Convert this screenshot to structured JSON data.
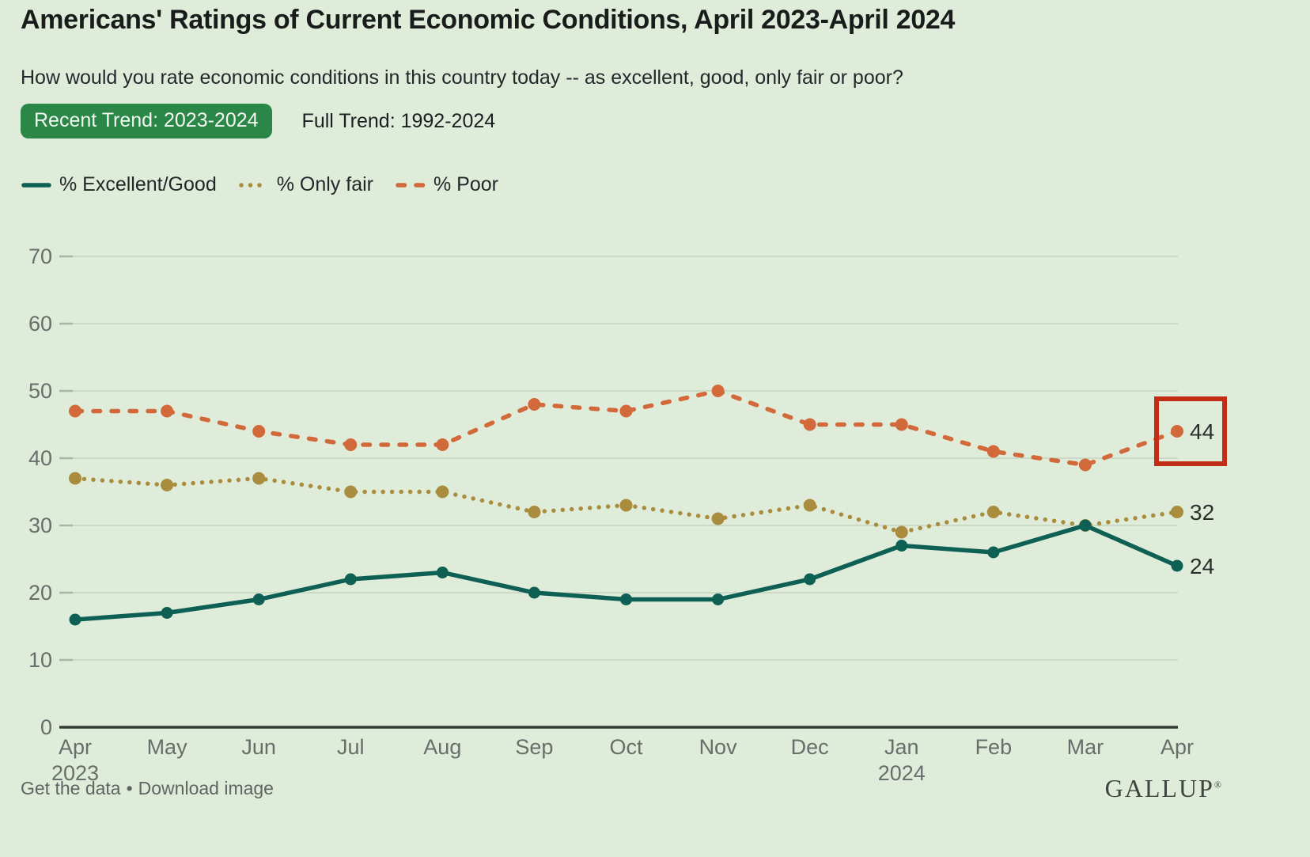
{
  "header": {
    "title": "Americans' Ratings of Current Economic Conditions, April 2023-April 2024",
    "subtitle": "How would you rate economic conditions in this country today -- as excellent, good, only fair or poor?"
  },
  "tabs": {
    "recent": {
      "label": "Recent Trend: 2023-2024",
      "active": true
    },
    "full": {
      "label": "Full Trend: 1992-2024",
      "active": false
    }
  },
  "colors": {
    "background": "#dfecd9",
    "tab_active_bg": "#2a8747",
    "grid": "#cbd9c6",
    "tick": "#a9b6a5",
    "axis_line": "#333a35",
    "axis_label": "#676e6b",
    "end_label": "#2b2e2c",
    "highlight_box": "#c22d17"
  },
  "chart_data": {
    "type": "line",
    "title": "Americans' Ratings of Current Economic Conditions, April 2023-April 2024",
    "categories": [
      "Apr",
      "May",
      "Jun",
      "Jul",
      "Aug",
      "Sep",
      "Oct",
      "Nov",
      "Dec",
      "Jan",
      "Feb",
      "Mar",
      "Apr"
    ],
    "year_labels": {
      "0": "2023",
      "9": "2024"
    },
    "series": [
      {
        "name": "% Excellent/Good",
        "color": "#0e6055",
        "style": "solid",
        "values": [
          16,
          17,
          19,
          22,
          23,
          20,
          19,
          19,
          22,
          27,
          26,
          30,
          24
        ],
        "end_label": "24"
      },
      {
        "name": "% Only fair",
        "color": "#a98c3e",
        "style": "dotted",
        "values": [
          37,
          36,
          37,
          35,
          35,
          32,
          33,
          31,
          33,
          29,
          32,
          30,
          32
        ],
        "end_label": "32"
      },
      {
        "name": "% Poor",
        "color": "#d2693a",
        "style": "dashed",
        "values": [
          47,
          47,
          44,
          42,
          42,
          48,
          47,
          50,
          45,
          45,
          41,
          39,
          44
        ],
        "end_label": "44",
        "highlight_last": true
      }
    ],
    "ylim": [
      0,
      70
    ],
    "yticks": [
      0,
      10,
      20,
      30,
      40,
      50,
      60,
      70
    ],
    "grid": "horizontal",
    "legend_position": "top-left",
    "highlight_color": "#c22d17"
  },
  "footer": {
    "get_data": "Get the data",
    "separator": "•",
    "download": "Download image",
    "logo": "GALLUP",
    "logo_mark": "®"
  }
}
